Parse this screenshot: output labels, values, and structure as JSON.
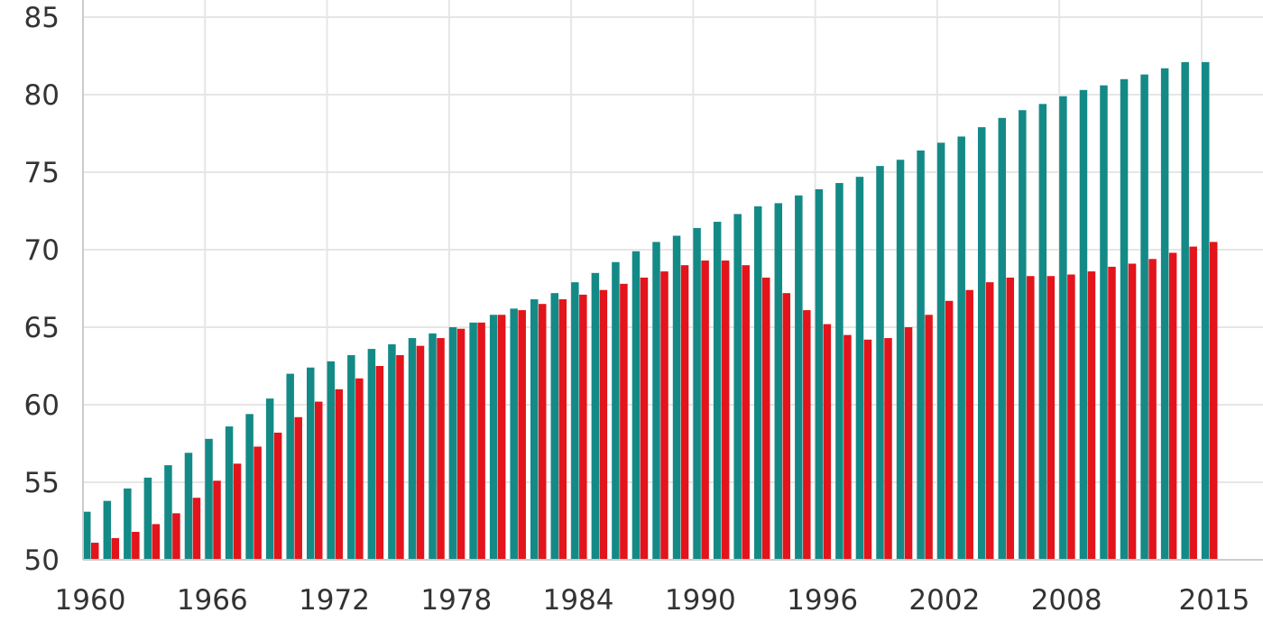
{
  "chart_data": {
    "type": "bar",
    "title": "",
    "xlabel": "",
    "ylabel": "",
    "ylim": [
      50,
      85
    ],
    "yticks": [
      50,
      55,
      60,
      65,
      70,
      75,
      80,
      85
    ],
    "xtick_labels": [
      "1960",
      "1966",
      "1972",
      "1978",
      "1984",
      "1990",
      "1996",
      "2002",
      "2008",
      "2015"
    ],
    "grid": true,
    "legend": "none",
    "colors": [
      "#148a87",
      "#e3141b"
    ],
    "categories": [
      1960,
      1961,
      1962,
      1963,
      1964,
      1965,
      1966,
      1967,
      1968,
      1969,
      1970,
      1971,
      1972,
      1973,
      1974,
      1975,
      1976,
      1977,
      1978,
      1979,
      1980,
      1981,
      1982,
      1983,
      1984,
      1985,
      1986,
      1987,
      1988,
      1989,
      1990,
      1991,
      1992,
      1993,
      1994,
      1995,
      1996,
      1997,
      1998,
      1999,
      2000,
      2001,
      2002,
      2003,
      2004,
      2005,
      2006,
      2007,
      2008,
      2009,
      2010,
      2011,
      2012,
      2013,
      2014,
      2015
    ],
    "series": [
      {
        "color": "#148a87",
        "values": [
          53.1,
          53.8,
          54.6,
          55.3,
          56.1,
          56.9,
          57.8,
          58.6,
          59.4,
          60.4,
          62.0,
          62.4,
          62.8,
          63.2,
          63.6,
          63.9,
          64.3,
          64.6,
          65.0,
          65.3,
          65.8,
          66.2,
          66.8,
          67.2,
          67.9,
          68.5,
          69.2,
          69.9,
          70.5,
          70.9,
          71.4,
          71.8,
          72.3,
          72.8,
          73.0,
          73.5,
          73.9,
          74.3,
          74.7,
          75.4,
          75.8,
          76.4,
          76.9,
          77.3,
          77.9,
          78.5,
          79.0,
          79.4,
          79.9,
          80.3,
          80.6,
          81.0,
          81.3,
          81.7,
          82.1,
          82.1
        ]
      },
      {
        "color": "#e3141b",
        "values": [
          51.1,
          51.4,
          51.8,
          52.3,
          53.0,
          54.0,
          55.1,
          56.2,
          57.3,
          58.2,
          59.2,
          60.2,
          61.0,
          61.7,
          62.5,
          63.2,
          63.8,
          64.3,
          64.9,
          65.3,
          65.8,
          66.1,
          66.5,
          66.8,
          67.1,
          67.4,
          67.8,
          68.2,
          68.6,
          69.0,
          69.3,
          69.3,
          69.0,
          68.2,
          67.2,
          66.1,
          65.2,
          64.5,
          64.2,
          64.3,
          65.0,
          65.8,
          66.7,
          67.4,
          67.9,
          68.2,
          68.3,
          68.3,
          68.4,
          68.6,
          68.9,
          69.1,
          69.4,
          69.8,
          70.2,
          70.5
        ]
      }
    ]
  }
}
